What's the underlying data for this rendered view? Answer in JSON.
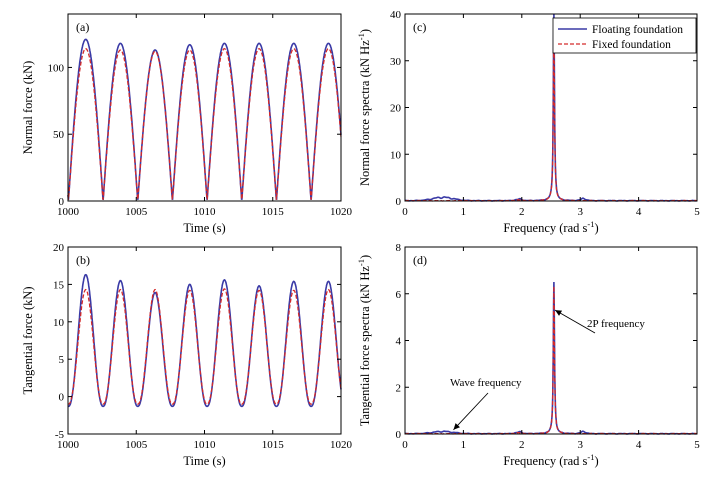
{
  "colors": {
    "floating": "#3a3aa6",
    "fixed": "#d42a2a"
  },
  "chart_data": [
    {
      "id": "a",
      "panel_label": "(a)",
      "type": "line",
      "xlabel": "Time (s)",
      "ylabel": "Normal force (kN)",
      "xlim": [
        1000,
        1020
      ],
      "ylim": [
        0,
        140
      ],
      "xticks": [
        1000,
        1005,
        1010,
        1015,
        1020
      ],
      "xtick_labels": [
        "1000",
        "1005",
        "1010",
        "1015",
        "1020"
      ],
      "yticks": [
        0,
        50,
        100
      ],
      "ytick_labels": [
        "0",
        "50",
        "100"
      ],
      "period_s": 2.54,
      "first_peak_s": 1001.3,
      "series": [
        {
          "name": "Floating foundation",
          "style": "solid",
          "peaks": [
            121,
            118,
            113,
            117,
            118,
            118,
            118,
            118
          ],
          "trough": 0
        },
        {
          "name": "Fixed foundation",
          "style": "dashed",
          "peaks": [
            114,
            113,
            112,
            113,
            114,
            114,
            114,
            114
          ],
          "trough": 0
        }
      ]
    },
    {
      "id": "b",
      "panel_label": "(b)",
      "type": "line",
      "xlabel": "Time (s)",
      "ylabel": "Tangential force (kN)",
      "xlim": [
        1000,
        1020
      ],
      "ylim": [
        -5,
        20
      ],
      "xticks": [
        1000,
        1005,
        1010,
        1015,
        1020
      ],
      "xtick_labels": [
        "1000",
        "1005",
        "1010",
        "1015",
        "1020"
      ],
      "yticks": [
        -5,
        0,
        5,
        10,
        15,
        20
      ],
      "ytick_labels": [
        "-5",
        "0",
        "5",
        "10",
        "15",
        "20"
      ],
      "period_s": 2.54,
      "first_peak_s": 1001.3,
      "series": [
        {
          "name": "Floating foundation",
          "style": "solid",
          "peaks": [
            16.3,
            15.5,
            13.9,
            15.0,
            15.6,
            14.8,
            15.4,
            15.4
          ],
          "trough": -1.3
        },
        {
          "name": "Fixed foundation",
          "style": "dashed",
          "peaks": [
            14.3,
            14.3,
            14.3,
            14.2,
            14.4,
            14.2,
            14.2,
            14.3
          ],
          "trough": -1.0
        }
      ]
    },
    {
      "id": "c",
      "panel_label": "(c)",
      "type": "line",
      "xlabel": "Frequency (rad s",
      "xlabel_sup": "-1",
      "xlabel_end": ")",
      "ylabel": "Normal force spectra (kN Hz",
      "ylabel_sup": "-1",
      "ylabel_end": ")",
      "xlim": [
        0,
        5
      ],
      "ylim": [
        0,
        40
      ],
      "xticks": [
        0,
        1,
        2,
        3,
        4,
        5
      ],
      "xtick_labels": [
        "0",
        "1",
        "2",
        "3",
        "4",
        "5"
      ],
      "yticks": [
        0,
        10,
        20,
        30,
        40
      ],
      "ytick_labels": [
        "0",
        "10",
        "20",
        "30",
        "40"
      ],
      "peak_frequency": 2.55,
      "legend": {
        "position": "top-right",
        "entries": [
          "Floating foundation",
          "Fixed foundation"
        ]
      },
      "series": [
        {
          "name": "Floating foundation",
          "style": "solid",
          "peak_value": 40,
          "wave_hump": {
            "center": 0.65,
            "height": 0.9
          },
          "minor_bumps": [
            [
              1.95,
              0.45
            ],
            [
              3.05,
              0.5
            ]
          ]
        },
        {
          "name": "Fixed foundation",
          "style": "dashed",
          "peak_value": 38,
          "wave_hump": null,
          "minor_bumps": [
            [
              1.95,
              0.2
            ]
          ]
        }
      ]
    },
    {
      "id": "d",
      "panel_label": "(d)",
      "type": "line",
      "xlabel": "Frequency (rad s",
      "xlabel_sup": "-1",
      "xlabel_end": ")",
      "ylabel": "Tangential force spectra (kN Hz",
      "ylabel_sup": "-1",
      "ylabel_end": ")",
      "xlim": [
        0,
        5
      ],
      "ylim": [
        0,
        8
      ],
      "xticks": [
        0,
        1,
        2,
        3,
        4,
        5
      ],
      "xtick_labels": [
        "0",
        "1",
        "2",
        "3",
        "4",
        "5"
      ],
      "yticks": [
        0,
        2,
        4,
        6,
        8
      ],
      "ytick_labels": [
        "0",
        "2",
        "4",
        "6",
        "8"
      ],
      "peak_frequency": 2.55,
      "annotations": [
        {
          "text": "2P frequency",
          "arrow_to": [
            2.57,
            5.3
          ]
        },
        {
          "text": "Wave frequency",
          "arrow_to": [
            0.83,
            0.18
          ]
        }
      ],
      "series": [
        {
          "name": "Floating foundation",
          "style": "solid",
          "peak_value": 6.5,
          "wave_hump": {
            "center": 0.65,
            "height": 0.12
          },
          "minor_bumps": [
            [
              1.95,
              0.1
            ],
            [
              3.05,
              0.1
            ]
          ]
        },
        {
          "name": "Fixed foundation",
          "style": "dashed",
          "peak_value": 6.3,
          "wave_hump": null,
          "minor_bumps": [
            [
              1.95,
              0.05
            ]
          ]
        }
      ]
    }
  ]
}
